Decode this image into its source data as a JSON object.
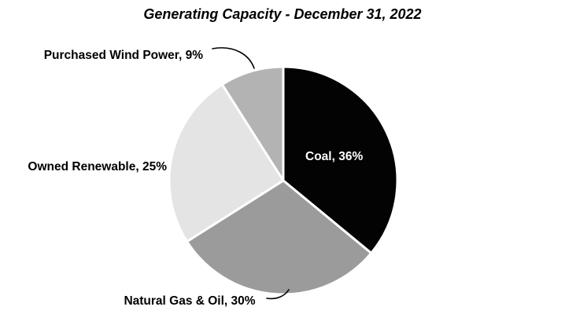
{
  "title": "Generating Capacity - December 31, 2022",
  "chart_data": {
    "type": "pie",
    "title": "Generating Capacity - December 31, 2022",
    "start_angle_deg": -90,
    "direction": "clockwise",
    "legend_position": "none",
    "label_style": "outside-callouts-except-coal",
    "categories": [
      "Coal",
      "Natural Gas & Oil",
      "Owned Renewable",
      "Purchased Wind Power"
    ],
    "values": [
      36,
      30,
      25,
      9
    ],
    "slices": [
      {
        "label": "Coal",
        "value": 36,
        "color": "#030303",
        "display": "Coal, 36%",
        "label_placement": "inside"
      },
      {
        "label": "Natural Gas & Oil",
        "value": 30,
        "color": "#9b9b9b",
        "display": "Natural Gas & Oil, 30%",
        "label_placement": "outside"
      },
      {
        "label": "Owned Renewable",
        "value": 25,
        "color": "#e4e4e4",
        "display": "Owned Renewable, 25%",
        "label_placement": "outside"
      },
      {
        "label": "Purchased Wind Power",
        "value": 9,
        "color": "#b3b3b3",
        "display": "Purchased Wind Power, 9%",
        "label_placement": "outside"
      }
    ]
  }
}
